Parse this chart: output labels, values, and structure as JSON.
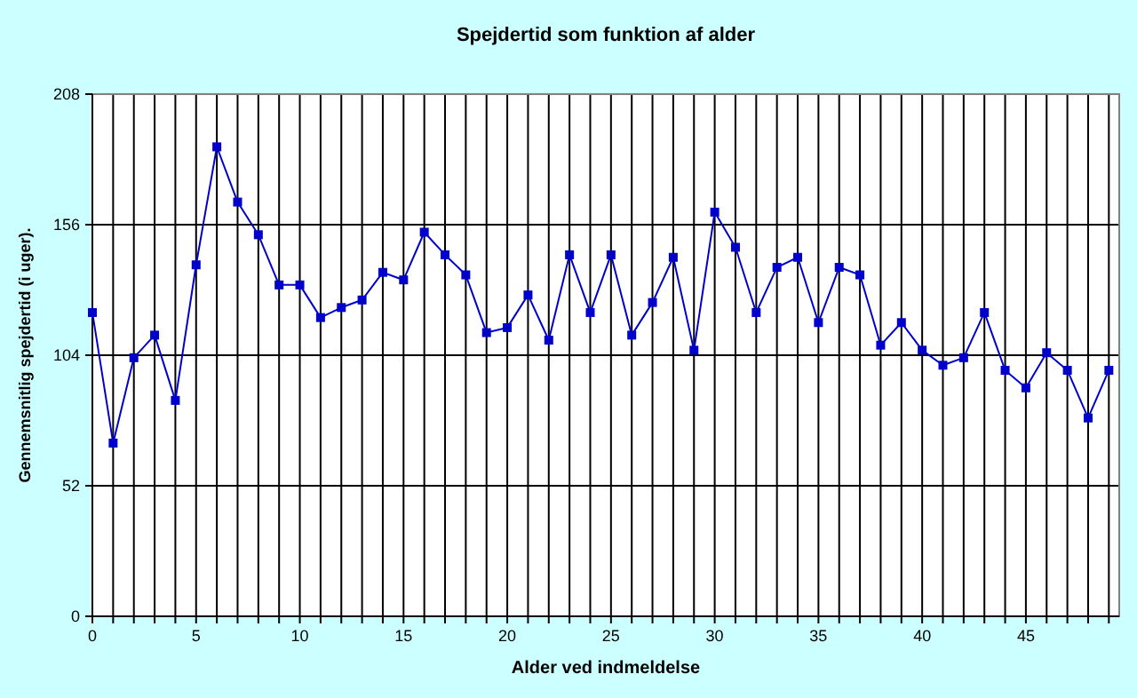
{
  "chart_data": {
    "type": "line",
    "title": "Spejdertid som funktion af alder",
    "xlabel": "Alder ved indmeldelse",
    "ylabel": "Gennemsnitlig spejdertid (i uger).",
    "x": [
      0,
      1,
      2,
      3,
      4,
      5,
      6,
      7,
      8,
      9,
      10,
      11,
      12,
      13,
      14,
      15,
      16,
      17,
      18,
      19,
      20,
      21,
      22,
      23,
      24,
      25,
      26,
      27,
      28,
      29,
      30,
      31,
      32,
      33,
      34,
      35,
      36,
      37,
      38,
      39,
      40,
      41,
      42,
      43,
      44,
      45,
      46,
      47,
      48,
      49
    ],
    "series": [
      {
        "color": "#0000cc",
        "values": [
          121,
          69,
          103,
          112,
          86,
          140,
          187,
          165,
          152,
          132,
          132,
          119,
          123,
          126,
          137,
          134,
          153,
          144,
          136,
          113,
          115,
          128,
          110,
          144,
          121,
          144,
          112,
          125,
          143,
          106,
          161,
          147,
          121,
          139,
          143,
          117,
          139,
          136,
          108,
          117,
          106,
          100,
          103,
          121,
          98,
          91,
          105,
          98,
          79,
          98
        ]
      }
    ],
    "xlim": [
      0,
      49.5
    ],
    "xticks": [
      0,
      {
        "value": 1,
        "label": null
      },
      {
        "value": 2,
        "label": null
      },
      {
        "value": 3,
        "label": null
      },
      {
        "value": 4,
        "label": null
      },
      5,
      {
        "value": 6,
        "label": null
      },
      {
        "value": 7,
        "label": null
      },
      {
        "value": 8,
        "label": null
      },
      {
        "value": 9,
        "label": null
      },
      10,
      {
        "value": 11,
        "label": null
      },
      {
        "value": 12,
        "label": null
      },
      {
        "value": 13,
        "label": null
      },
      {
        "value": 14,
        "label": null
      },
      15,
      {
        "value": 16,
        "label": null
      },
      {
        "value": 17,
        "label": null
      },
      {
        "value": 18,
        "label": null
      },
      {
        "value": 19,
        "label": null
      },
      20,
      {
        "value": 21,
        "label": null
      },
      {
        "value": 22,
        "label": null
      },
      {
        "value": 23,
        "label": null
      },
      {
        "value": 24,
        "label": null
      },
      25,
      {
        "value": 26,
        "label": null
      },
      {
        "value": 27,
        "label": null
      },
      {
        "value": 28,
        "label": null
      },
      {
        "value": 29,
        "label": null
      },
      30,
      {
        "value": 31,
        "label": null
      },
      {
        "value": 32,
        "label": null
      },
      {
        "value": 33,
        "label": null
      },
      {
        "value": 34,
        "label": null
      },
      35,
      {
        "value": 36,
        "label": null
      },
      {
        "value": 37,
        "label": null
      },
      {
        "value": 38,
        "label": null
      },
      {
        "value": 39,
        "label": null
      },
      40,
      {
        "value": 41,
        "label": null
      },
      {
        "value": 42,
        "label": null
      },
      {
        "value": 43,
        "label": null
      },
      {
        "value": 44,
        "label": null
      },
      45,
      {
        "value": 46,
        "label": null
      },
      {
        "value": 47,
        "label": null
      },
      {
        "value": 48,
        "label": null
      },
      {
        "value": 49,
        "label": null
      }
    ],
    "ylim": [
      0,
      208
    ],
    "yticks": [
      0,
      52,
      104,
      156,
      208
    ],
    "grid": true,
    "marker": "square",
    "line_style": "solid"
  }
}
